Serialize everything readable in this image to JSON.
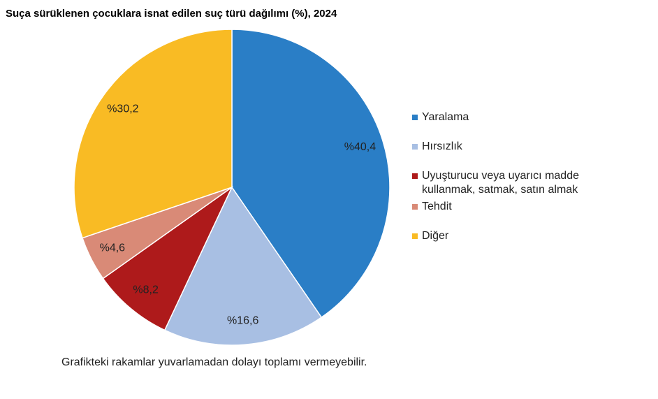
{
  "chart_data": {
    "type": "pie",
    "title": "Suça sürüklenen çocuklara isnat edilen suç türü dağılımı (%), 2024",
    "categories": [
      "Yaralama",
      "Hırsızlık",
      "Uyuşturucu veya uyarıcı madde kullanmak, satmak, satın almak",
      "Tehdit",
      "Diğer"
    ],
    "values": [
      40.4,
      16.6,
      8.2,
      4.6,
      30.2
    ],
    "value_labels": [
      "%40,4",
      "%16,6",
      "%8,2",
      "%4,6",
      "%30,2"
    ],
    "colors": [
      "#2a7ec6",
      "#a8bfe3",
      "#ae1a1b",
      "#d98a77",
      "#f9bb24"
    ],
    "note": "Grafikteki rakamlar yuvarlamadan dolayı toplamı vermeyebilir."
  }
}
